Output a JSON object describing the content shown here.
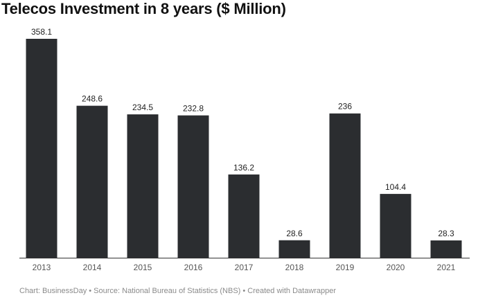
{
  "chart_data": {
    "type": "bar",
    "title": "Telecos Investment in 8 years ($ Million)",
    "categories": [
      "2013",
      "2014",
      "2015",
      "2016",
      "2017",
      "2018",
      "2019",
      "2020",
      "2021"
    ],
    "values": [
      358.1,
      248.6,
      234.5,
      232.8,
      136.2,
      28.6,
      236,
      104.4,
      28.3
    ],
    "value_labels": [
      "358.1",
      "248.6",
      "234.5",
      "232.8",
      "136.2",
      "28.6",
      "236",
      "104.4",
      "28.3"
    ],
    "xlabel": "",
    "ylabel": "",
    "ylim": [
      0,
      358.1
    ],
    "grid": false,
    "legend": "none",
    "bar_color": "#2b2d30"
  },
  "footer": "Chart: BusinessDay • Source: National Bureau of Statistics (NBS) • Created with Datawrapper"
}
